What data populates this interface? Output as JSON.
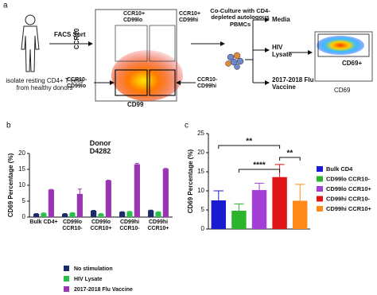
{
  "diagram": {
    "panel": "a",
    "facs": "FACS Sort",
    "source": "isolate resting CD4+ T cells from healthy donors",
    "plot_y": "CCR10",
    "plot_x": "CD99",
    "gates": [
      "CCR10+ CD99lo",
      "CCR10+ CD99hi",
      "CCR10- CD99lo",
      "CCR10- CD99hi"
    ],
    "coculture": "Co-Culture with CD4-depleted autologous PBMCs",
    "conditions": [
      "Media",
      "HIV Lysate",
      "2017-2018 Flu Vaccine"
    ],
    "readout_gate": "CD69+",
    "readout_axis": "CD69"
  },
  "chart_data": [
    {
      "type": "bar",
      "panel": "b",
      "title": "Donor D4282",
      "ylabel": "CD69 Percentage (%)",
      "categories": [
        "Bulk CD4+",
        "CD99lo CCR10-",
        "CD99lo CCR10+",
        "CD99hi CCR10-",
        "CD99hi CCR10+"
      ],
      "series": [
        {
          "name": "No stimulation",
          "color": "#1b2a6b",
          "values": [
            1.0,
            1.0,
            2.0,
            1.6,
            2.1
          ],
          "errors": [
            0.1,
            0.1,
            0.1,
            0.1,
            0.1
          ]
        },
        {
          "name": "HIV Lysate",
          "color": "#2bbf4a",
          "values": [
            1.2,
            1.3,
            1.0,
            1.7,
            1.6
          ],
          "errors": [
            0.1,
            0.1,
            0.1,
            0.1,
            0.1
          ]
        },
        {
          "name": "2017-2018 Flu Vaccine",
          "color": "#9b35b3",
          "values": [
            8.6,
            7.3,
            11.5,
            16.6,
            15.2
          ],
          "errors": [
            0.1,
            1.5,
            0.1,
            0.3,
            0.1
          ]
        }
      ],
      "ylim": [
        0,
        20
      ],
      "yticks": [
        0,
        5,
        10,
        15,
        20
      ]
    },
    {
      "type": "bar",
      "panel": "c",
      "ylabel": "CD69 Percentage (%)",
      "series": [
        {
          "name": "Bulk CD4",
          "color": "#1a1ad0",
          "values": [
            7.5
          ],
          "errors": [
            2.5
          ]
        },
        {
          "name": "CD99lo CCR10-",
          "color": "#2cb52c",
          "values": [
            4.8
          ],
          "errors": [
            1.8
          ]
        },
        {
          "name": "CD99lo CCR10+",
          "color": "#a23fd4",
          "values": [
            10.2
          ],
          "errors": [
            1.8
          ]
        },
        {
          "name": "CD99hi CCR10-",
          "color": "#e01414",
          "values": [
            13.6
          ],
          "errors": [
            3.3
          ]
        },
        {
          "name": "CD99hi CCR10+",
          "color": "#ff8a1c",
          "values": [
            7.4
          ],
          "errors": [
            4.3
          ]
        }
      ],
      "annotations": [
        "**",
        "****",
        "**"
      ],
      "ylim": [
        0,
        25
      ],
      "yticks": [
        0,
        5,
        10,
        15,
        20,
        25
      ]
    }
  ]
}
